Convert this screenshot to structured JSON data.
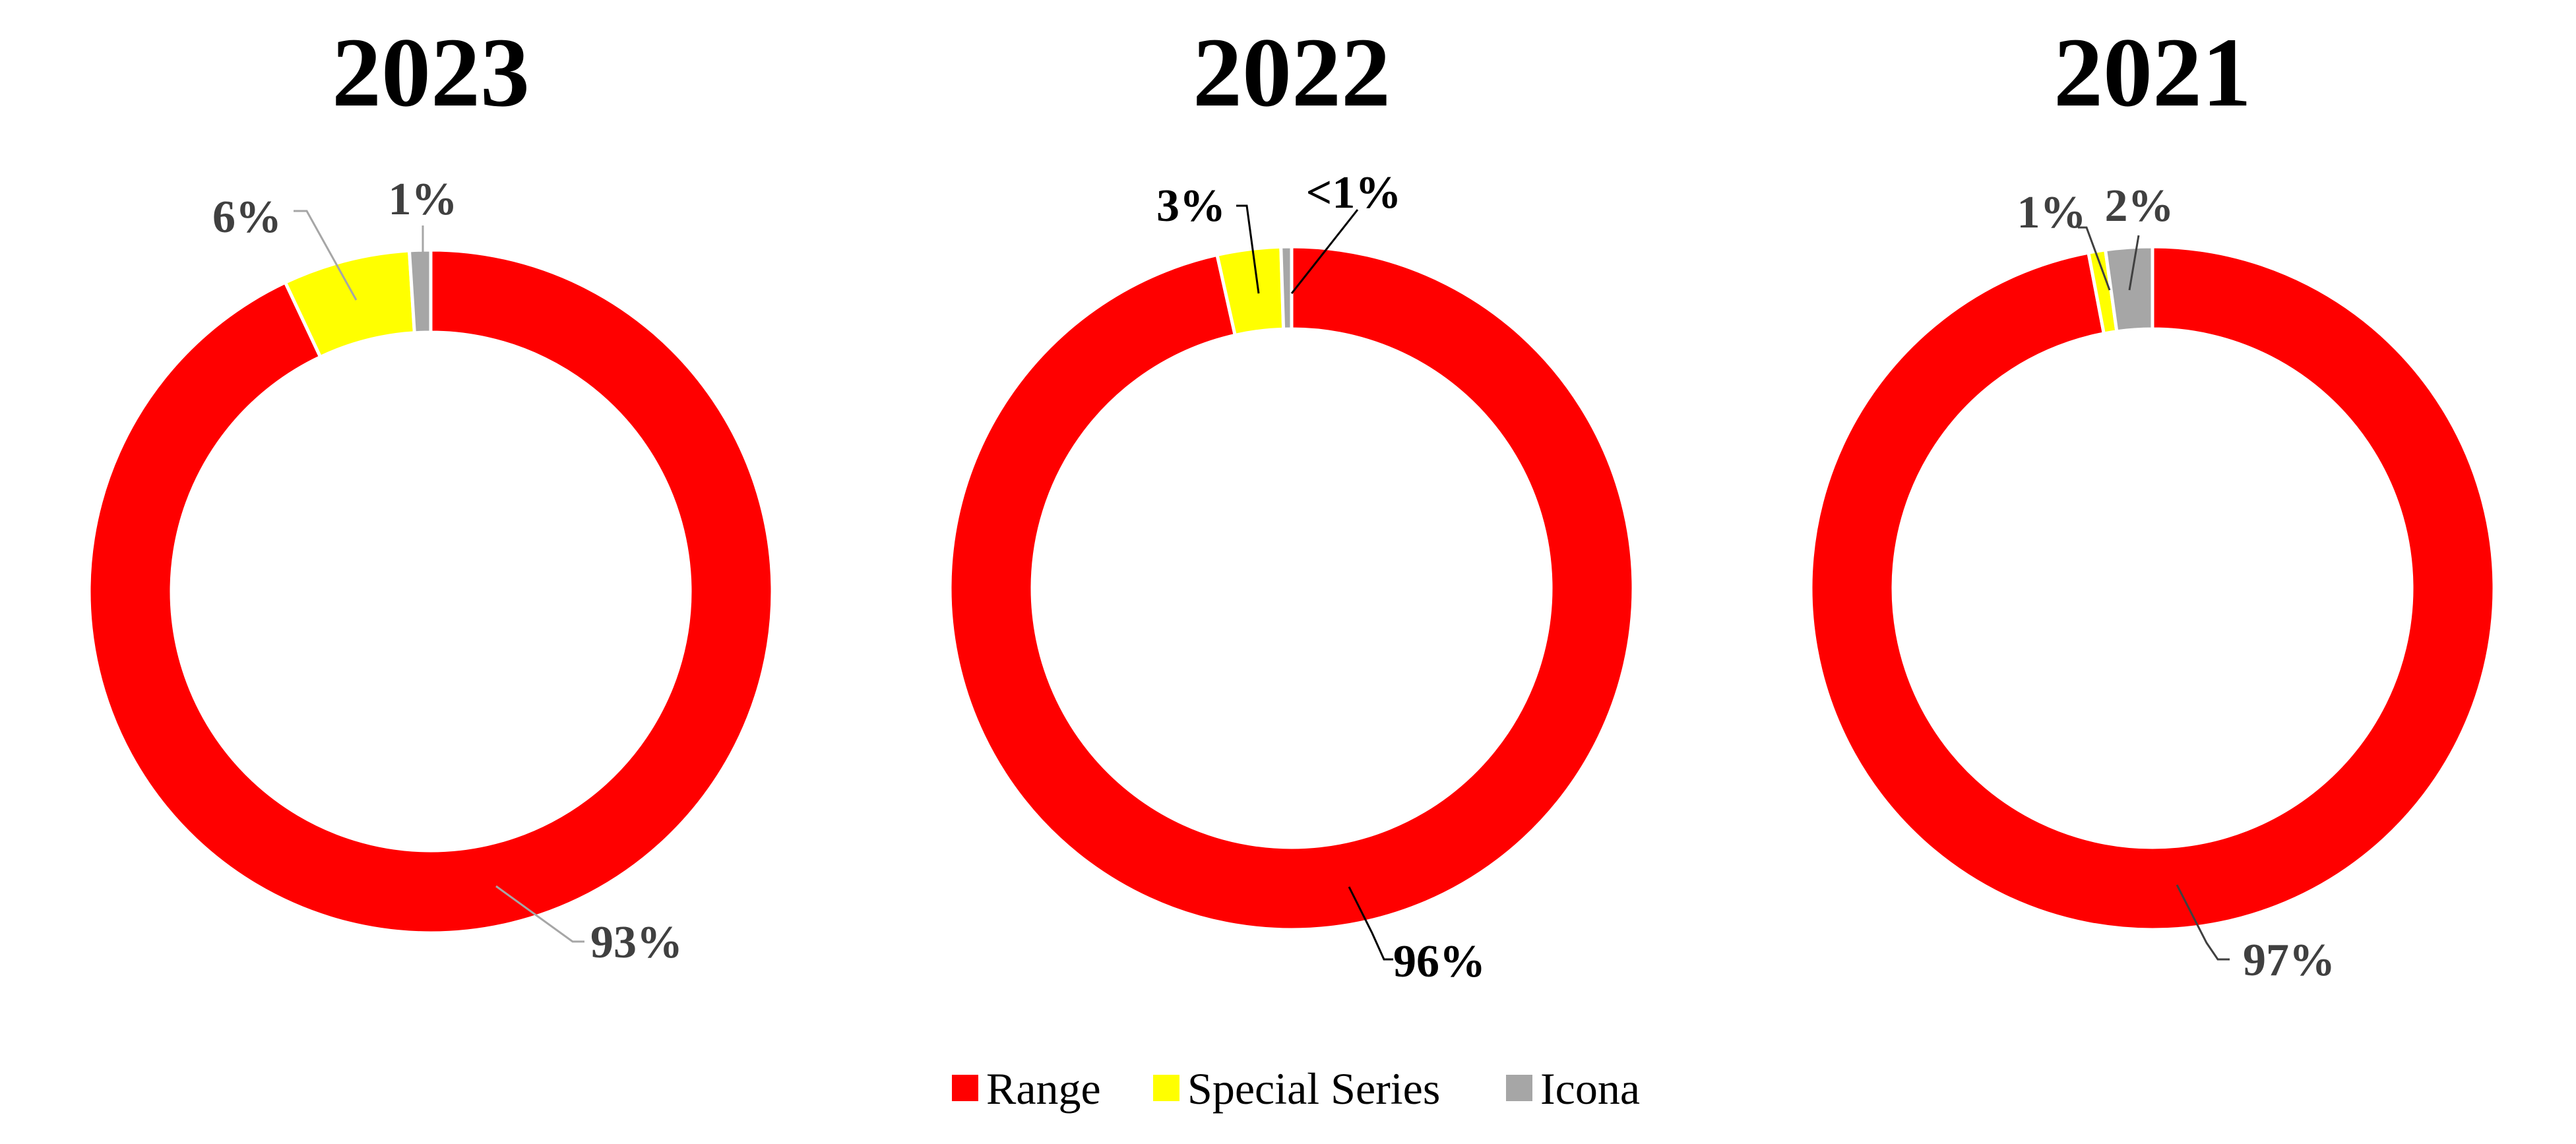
{
  "chart_data": {
    "type": "pie",
    "variant": "donut",
    "series_names": [
      "Range",
      "Special Series",
      "Icona"
    ],
    "colors": {
      "Range": "#ff0000",
      "Special Series": "#ffff00",
      "Icona": "#a6a6a6"
    },
    "legend": {
      "placement": "bottom-center",
      "entries": [
        "Range",
        "Special Series",
        "Icona"
      ]
    },
    "charts": [
      {
        "title": "2023",
        "slices": [
          {
            "name": "Range",
            "value": 93,
            "label": "93%",
            "label_color": "#404040"
          },
          {
            "name": "Special Series",
            "value": 6,
            "label": "6%",
            "label_color": "#404040"
          },
          {
            "name": "Icona",
            "value": 1,
            "label": "1%",
            "label_color": "#404040"
          }
        ]
      },
      {
        "title": "2022",
        "slices": [
          {
            "name": "Range",
            "value": 96.5,
            "label": "96%",
            "label_color": "#000000"
          },
          {
            "name": "Special Series",
            "value": 3,
            "label": "3%",
            "label_color": "#000000"
          },
          {
            "name": "Icona",
            "value": 0.5,
            "label": "<1%",
            "label_color": "#000000"
          }
        ]
      },
      {
        "title": "2021",
        "slices": [
          {
            "name": "Range",
            "value": 97,
            "label": "97%",
            "label_color": "#404040"
          },
          {
            "name": "Special Series",
            "value": 0.8,
            "label": "1%",
            "label_color": "#404040"
          },
          {
            "name": "Icona",
            "value": 2.2,
            "label": "2%",
            "label_color": "#404040"
          }
        ]
      }
    ]
  }
}
